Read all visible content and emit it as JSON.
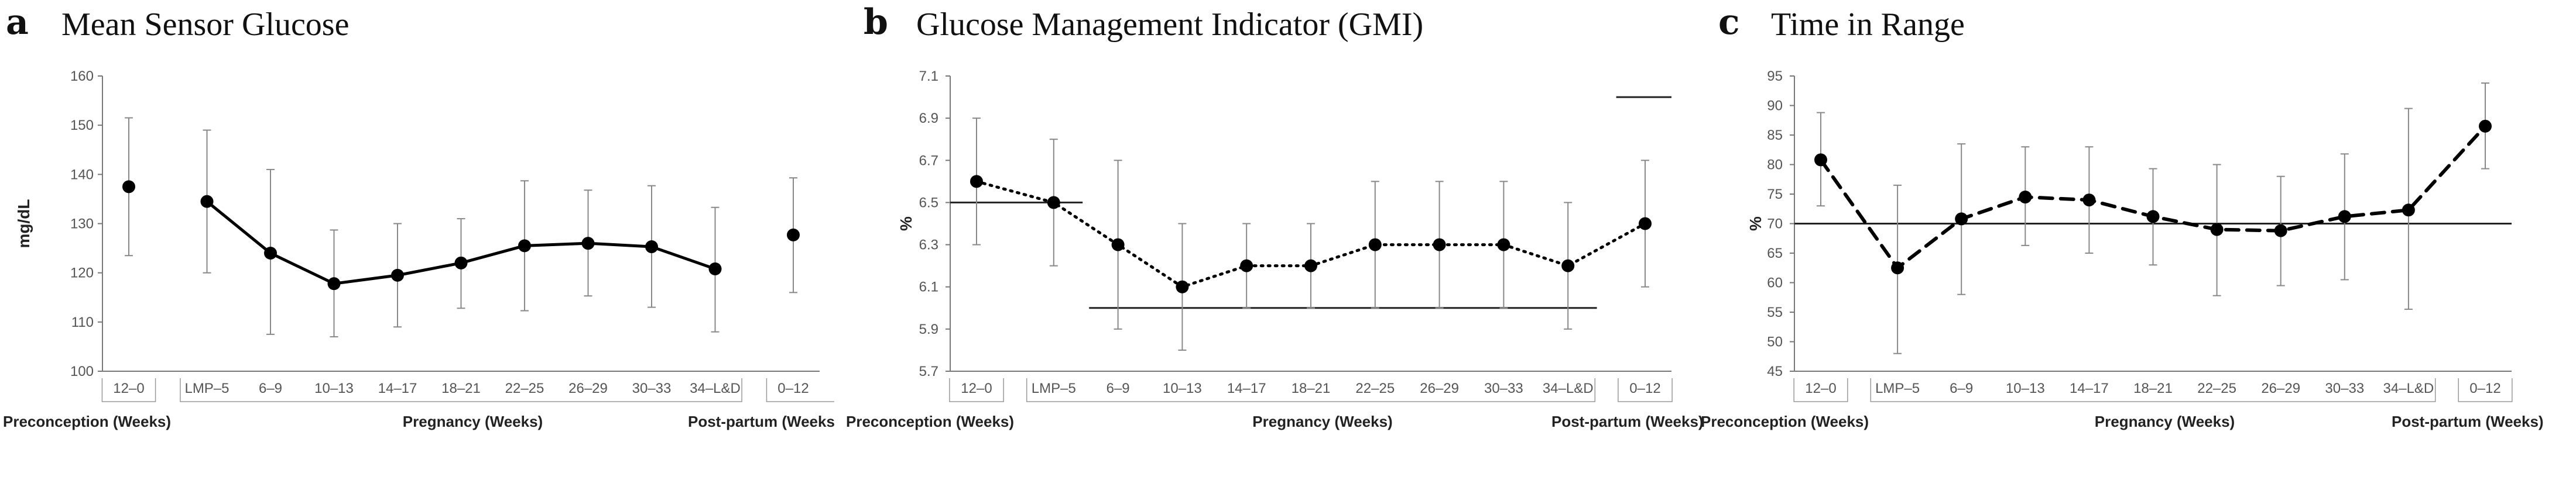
{
  "chart_data": [
    {
      "panel": "a",
      "type": "line",
      "title": "Mean Sensor Glucose",
      "ylabel": "mg/dL",
      "xlabel": "",
      "ylim": [
        100,
        160
      ],
      "yticks": [
        100,
        110,
        120,
        130,
        140,
        150,
        160
      ],
      "categories": [
        "12–0",
        "LMP–5",
        "6–9",
        "10–13",
        "14–17",
        "18–21",
        "22–25",
        "26–29",
        "30–33",
        "34–L&D",
        "0–12"
      ],
      "groups": [
        {
          "label": "Preconception (Weeks)",
          "from": 0,
          "to": 0
        },
        {
          "label": "Pregnancy (Weeks)",
          "from": 1,
          "to": 9
        },
        {
          "label": "Post-partum (Weeks)",
          "from": 10,
          "to": 10
        }
      ],
      "line_style": "solid",
      "values": [
        137.5,
        134.5,
        124,
        117.8,
        119.5,
        122,
        125.5,
        126,
        125.3,
        120.8,
        127.7
      ],
      "error_low": [
        123.5,
        120,
        107.5,
        107,
        109,
        112.8,
        112.3,
        115.3,
        113,
        108,
        116
      ],
      "error_high": [
        151.5,
        149,
        141,
        128.7,
        130,
        131,
        138.7,
        136.8,
        137.7,
        133.3,
        139.3
      ],
      "gaps_after": [
        0,
        9
      ],
      "reference_lines": [],
      "grid": false
    },
    {
      "panel": "b",
      "type": "line",
      "title": "Glucose Management Indicator (GMI)",
      "ylabel": "%",
      "xlabel": "",
      "ylim": [
        5.7,
        7.1
      ],
      "yticks": [
        5.7,
        5.9,
        6.1,
        6.3,
        6.5,
        6.7,
        6.9,
        7.1
      ],
      "categories": [
        "12–0",
        "LMP–5",
        "6–9",
        "10–13",
        "14–17",
        "18–21",
        "22–25",
        "26–29",
        "30–33",
        "34–L&D",
        "0–12"
      ],
      "groups": [
        {
          "label": "Preconception (Weeks)",
          "from": 0,
          "to": 0
        },
        {
          "label": "Pregnancy (Weeks)",
          "from": 1,
          "to": 9
        },
        {
          "label": "Post-partum (Weeks)",
          "from": 10,
          "to": 10
        }
      ],
      "line_style": "dotted",
      "values": [
        6.6,
        6.5,
        6.3,
        6.1,
        6.2,
        6.2,
        6.3,
        6.3,
        6.3,
        6.2,
        6.4
      ],
      "error_low": [
        6.3,
        6.2,
        5.9,
        5.8,
        6.0,
        6.0,
        6.0,
        6.0,
        6.0,
        5.9,
        6.1
      ],
      "error_high": [
        6.9,
        6.8,
        6.7,
        6.4,
        6.4,
        6.4,
        6.6,
        6.6,
        6.6,
        6.5,
        6.7
      ],
      "gaps_after": [],
      "reference_lines": [
        {
          "y": 6.5,
          "x_from": 0,
          "x_to": 1
        },
        {
          "y": 6.0,
          "x_from": 2,
          "x_to": 9
        },
        {
          "y": 7.0,
          "x_from": 10,
          "x_to": 10
        }
      ],
      "grid": false
    },
    {
      "panel": "c",
      "type": "line",
      "title": "Time in Range",
      "ylabel": "%",
      "xlabel": "",
      "ylim": [
        45,
        95
      ],
      "yticks": [
        45,
        50,
        55,
        60,
        65,
        70,
        75,
        80,
        85,
        90,
        95
      ],
      "categories": [
        "12–0",
        "LMP–5",
        "6–9",
        "10–13",
        "14–17",
        "18–21",
        "22–25",
        "26–29",
        "30–33",
        "34–L&D",
        "0–12"
      ],
      "groups": [
        {
          "label": "Preconception (Weeks)",
          "from": 0,
          "to": 0
        },
        {
          "label": "Pregnancy (Weeks)",
          "from": 1,
          "to": 9
        },
        {
          "label": "Post-partum (Weeks)",
          "from": 10,
          "to": 10
        }
      ],
      "line_style": "dashed",
      "values": [
        80.8,
        62.5,
        70.8,
        74.5,
        74,
        71.2,
        69,
        68.8,
        71.2,
        72.3,
        86.5
      ],
      "error_low": [
        73,
        48,
        58,
        66.3,
        65,
        63,
        57.8,
        59.5,
        60.5,
        55.5,
        79.3
      ],
      "error_high": [
        88.8,
        76.5,
        83.5,
        83,
        83,
        79.3,
        80,
        78,
        81.8,
        89.5,
        93.8
      ],
      "gaps_after": [],
      "reference_lines": [
        {
          "y": 70,
          "x_from": 0,
          "x_to": 10
        }
      ],
      "grid": false
    }
  ]
}
